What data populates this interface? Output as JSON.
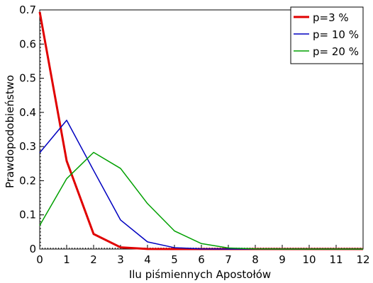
{
  "chart_data": {
    "type": "line",
    "xlabel": "Ilu piśmiennych Apostołów",
    "ylabel": "Prawdopodobieństwo",
    "xlim": [
      0,
      12
    ],
    "ylim": [
      0,
      0.7
    ],
    "xticks": [
      "0",
      "1",
      "2",
      "3",
      "4",
      "5",
      "6",
      "7",
      "8",
      "9",
      "10",
      "11",
      "12"
    ],
    "yticks": [
      "0",
      "0.1",
      "0.2",
      "0.3",
      "0.4",
      "0.5",
      "0.6",
      "0.7"
    ],
    "grid": false,
    "legend_position": "top-right",
    "x": [
      0,
      1,
      2,
      3,
      4,
      5,
      6,
      7,
      8,
      9,
      10,
      11,
      12
    ],
    "series": [
      {
        "name": "p=3 %",
        "color": "#e00000",
        "values": [
          0.694,
          0.258,
          0.044,
          0.005,
          0.0003,
          0,
          0,
          0,
          0,
          0,
          0,
          0,
          0
        ]
      },
      {
        "name": "p= 10 %",
        "color": "#0000c0",
        "values": [
          0.282,
          0.377,
          0.23,
          0.085,
          0.021,
          0.004,
          0.0005,
          0,
          0,
          0,
          0,
          0,
          0
        ]
      },
      {
        "name": "p= 20 %",
        "color": "#00a000",
        "values": [
          0.069,
          0.206,
          0.283,
          0.236,
          0.133,
          0.053,
          0.016,
          0.003,
          0.0005,
          0,
          0,
          0,
          0
        ]
      }
    ]
  }
}
